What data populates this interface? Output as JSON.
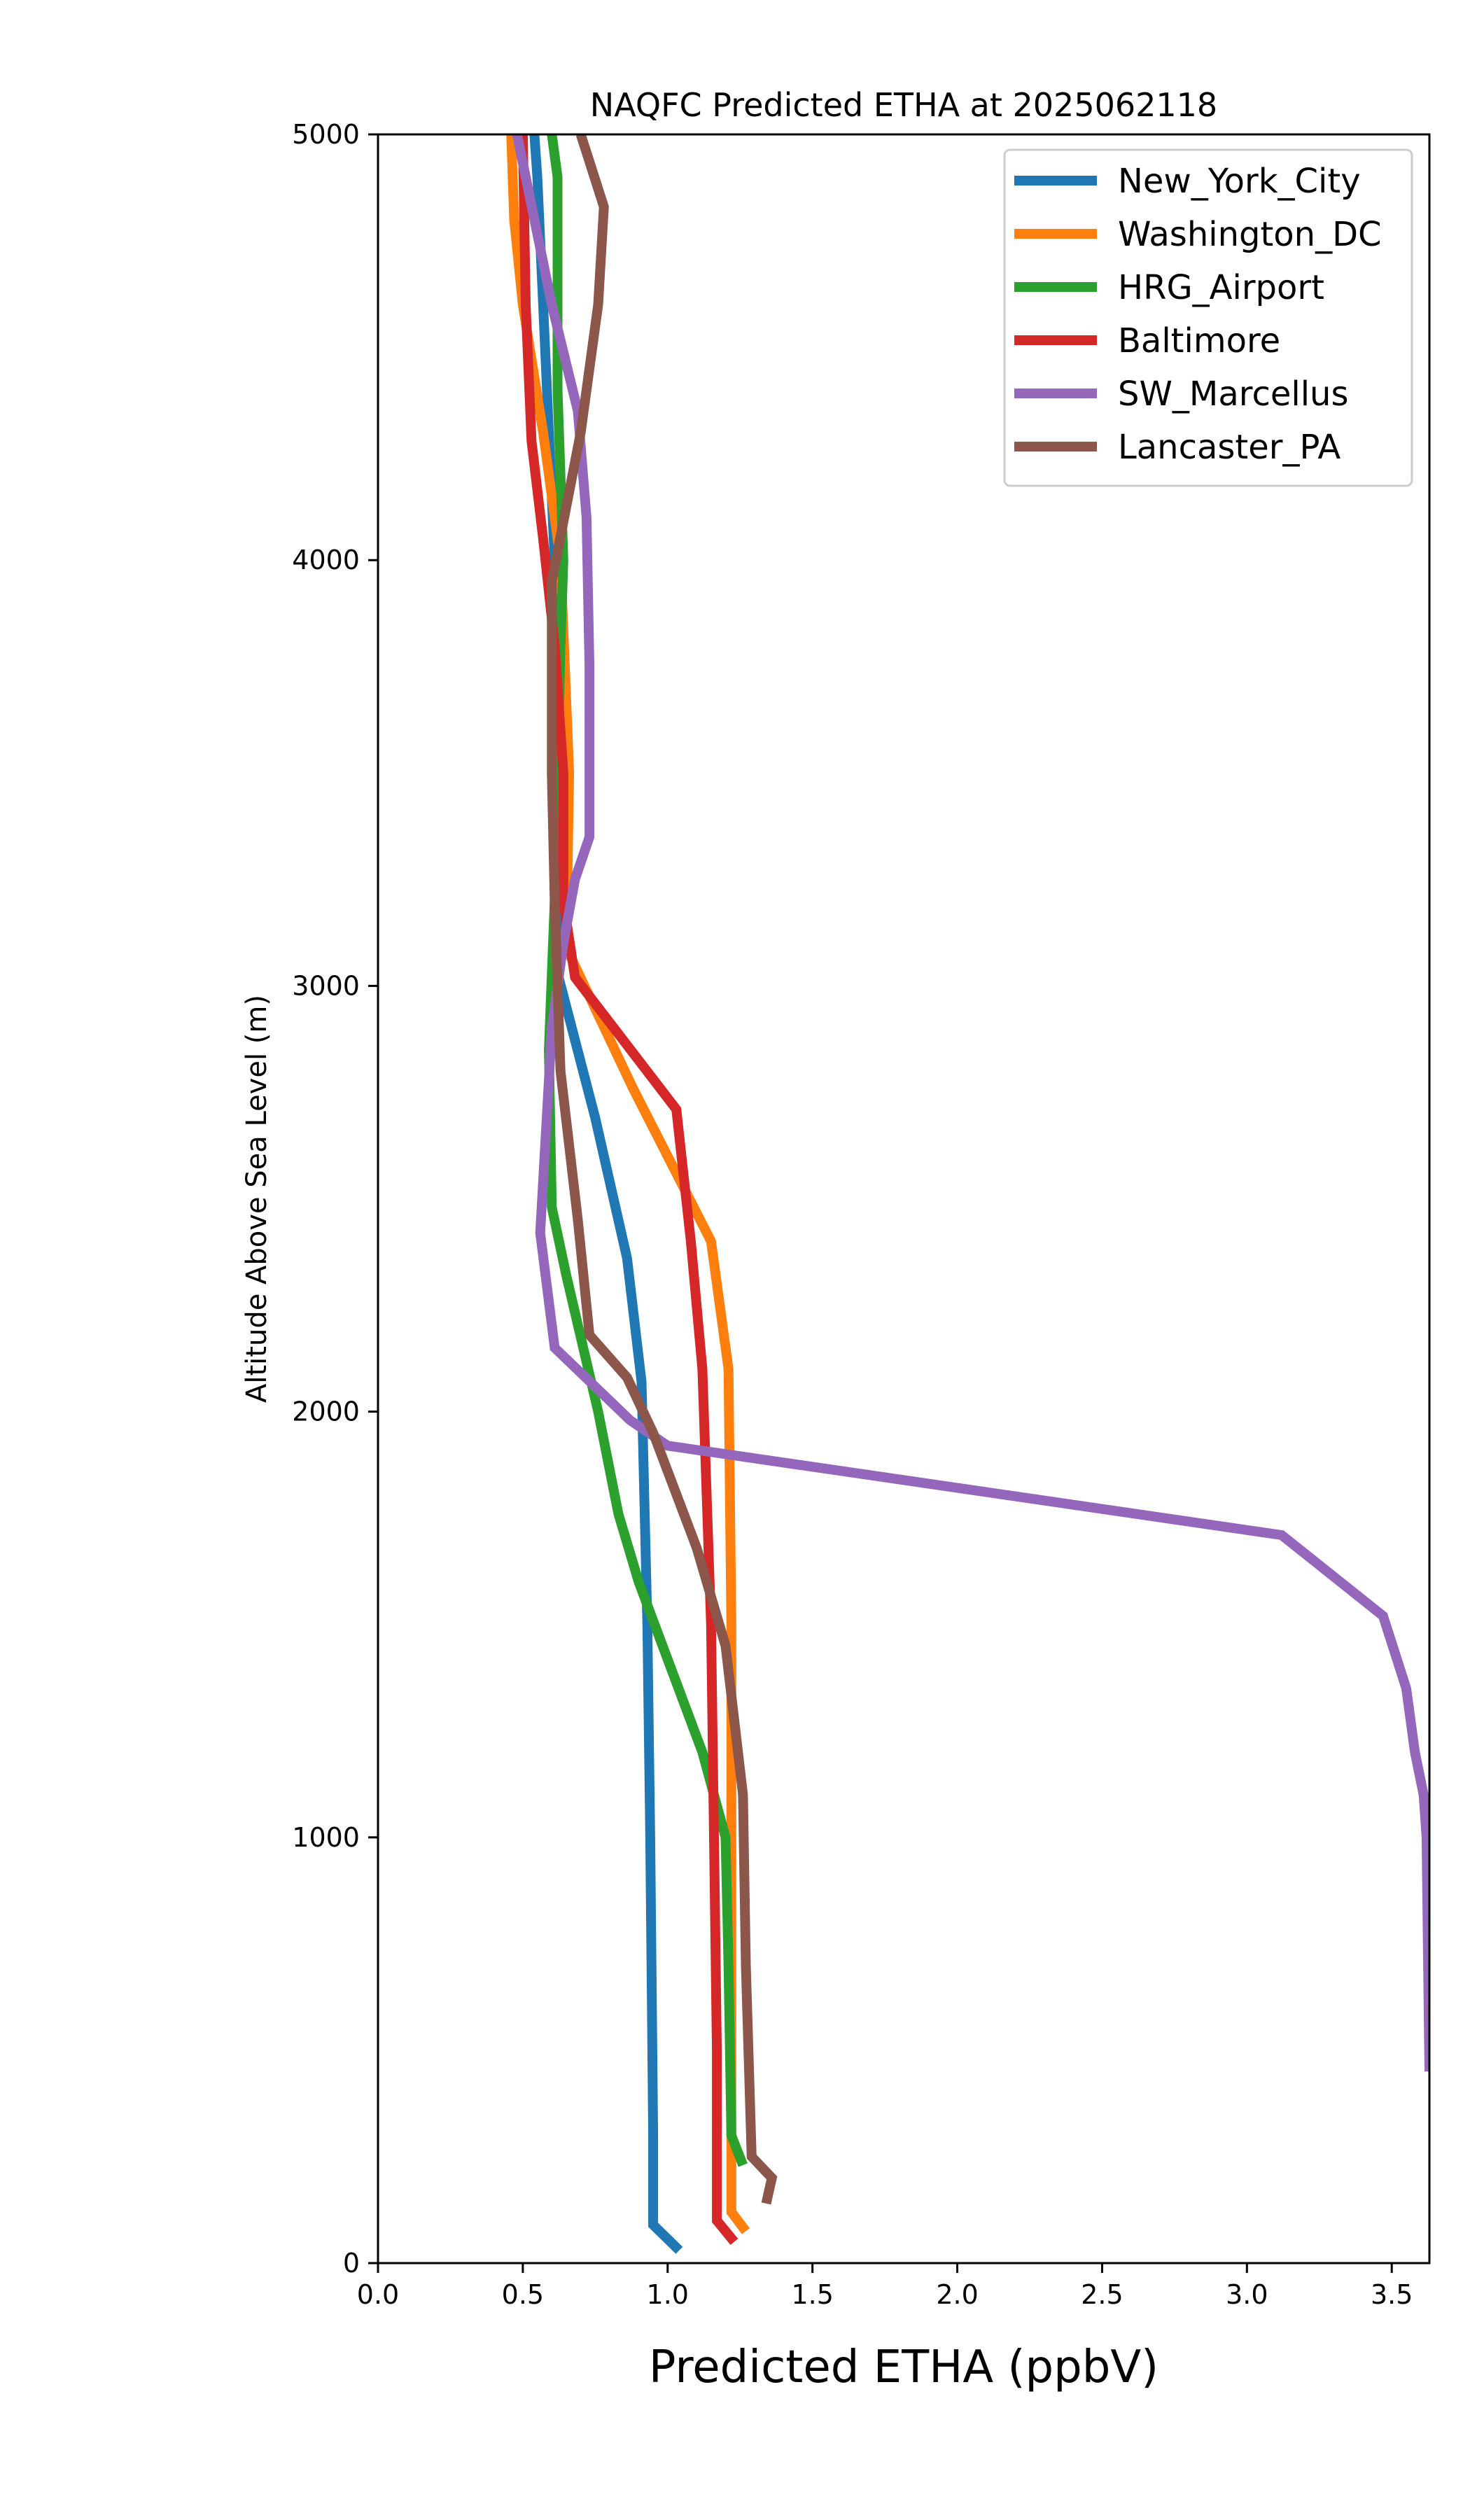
{
  "chart_data": {
    "type": "line",
    "title": "NAQFC Predicted ETHA at 2025062118",
    "xlabel": "Predicted ETHA (ppbV)",
    "ylabel": "Altitude Above Sea Level (m)",
    "xlim": [
      0,
      3.63
    ],
    "ylim": [
      0,
      5000
    ],
    "x_ticks": [
      "0.0",
      "0.5",
      "1.0",
      "1.5",
      "2.0",
      "2.5",
      "3.0",
      "3.5"
    ],
    "y_ticks": [
      "0",
      "1000",
      "2000",
      "3000",
      "4000",
      "5000"
    ],
    "grid": false,
    "legend_position": "top-right",
    "series": [
      {
        "name": "New_York_City",
        "color": "#1f77b4",
        "points": [
          [
            1.04,
            30
          ],
          [
            0.95,
            90
          ],
          [
            0.95,
            300
          ],
          [
            0.94,
            1000
          ],
          [
            0.93,
            1500
          ],
          [
            0.91,
            2070
          ],
          [
            0.86,
            2360
          ],
          [
            0.75,
            2690
          ],
          [
            0.62,
            3030
          ],
          [
            0.63,
            3500
          ],
          [
            0.62,
            3800
          ],
          [
            0.61,
            4000
          ],
          [
            0.59,
            4300
          ],
          [
            0.57,
            4600
          ],
          [
            0.55,
            4900
          ],
          [
            0.54,
            5000
          ]
        ]
      },
      {
        "name": "Washington_DC",
        "color": "#ff7f0e",
        "points": [
          [
            1.27,
            75
          ],
          [
            1.22,
            120
          ],
          [
            1.22,
            500
          ],
          [
            1.22,
            1000
          ],
          [
            1.22,
            1500
          ],
          [
            1.21,
            2100
          ],
          [
            1.15,
            2400
          ],
          [
            0.88,
            2760
          ],
          [
            0.65,
            3090
          ],
          [
            0.66,
            3500
          ],
          [
            0.63,
            4000
          ],
          [
            0.57,
            4300
          ],
          [
            0.5,
            4600
          ],
          [
            0.47,
            4800
          ],
          [
            0.46,
            5000
          ]
        ]
      },
      {
        "name": "HRG_Airport",
        "color": "#2ca02c",
        "points": [
          [
            1.26,
            230
          ],
          [
            1.22,
            300
          ],
          [
            1.21,
            700
          ],
          [
            1.2,
            1000
          ],
          [
            1.12,
            1200
          ],
          [
            0.9,
            1600
          ],
          [
            0.83,
            1760
          ],
          [
            0.76,
            2000
          ],
          [
            0.65,
            2320
          ],
          [
            0.6,
            2480
          ],
          [
            0.59,
            2850
          ],
          [
            0.61,
            3200
          ],
          [
            0.62,
            3500
          ],
          [
            0.63,
            3800
          ],
          [
            0.64,
            4000
          ],
          [
            0.62,
            4400
          ],
          [
            0.62,
            4900
          ],
          [
            0.6,
            5000
          ]
        ]
      },
      {
        "name": "Baltimore",
        "color": "#d62728",
        "points": [
          [
            1.23,
            50
          ],
          [
            1.17,
            100
          ],
          [
            1.17,
            500
          ],
          [
            1.16,
            1000
          ],
          [
            1.15,
            1500
          ],
          [
            1.12,
            2100
          ],
          [
            1.08,
            2400
          ],
          [
            1.03,
            2710
          ],
          [
            0.68,
            3020
          ],
          [
            0.64,
            3200
          ],
          [
            0.64,
            3500
          ],
          [
            0.61,
            3800
          ],
          [
            0.57,
            4050
          ],
          [
            0.53,
            4280
          ],
          [
            0.51,
            4600
          ],
          [
            0.5,
            5000
          ]
        ]
      },
      {
        "name": "SW_Marcellus",
        "color": "#9467bd",
        "points": [
          [
            3.63,
            450
          ],
          [
            3.62,
            1000
          ],
          [
            3.61,
            1100
          ],
          [
            3.58,
            1200
          ],
          [
            3.55,
            1350
          ],
          [
            3.47,
            1520
          ],
          [
            3.12,
            1710
          ],
          [
            1.0,
            1920
          ],
          [
            0.87,
            1980
          ],
          [
            0.61,
            2150
          ],
          [
            0.56,
            2420
          ],
          [
            0.6,
            2900
          ],
          [
            0.64,
            3100
          ],
          [
            0.68,
            3250
          ],
          [
            0.73,
            3350
          ],
          [
            0.73,
            3750
          ],
          [
            0.72,
            4100
          ],
          [
            0.69,
            4350
          ],
          [
            0.6,
            4600
          ],
          [
            0.54,
            4800
          ],
          [
            0.48,
            5000
          ]
        ]
      },
      {
        "name": "Lancaster_PA",
        "color": "#8c564b",
        "points": [
          [
            1.34,
            140
          ],
          [
            1.36,
            200
          ],
          [
            1.29,
            250
          ],
          [
            1.27,
            700
          ],
          [
            1.26,
            1100
          ],
          [
            1.2,
            1450
          ],
          [
            1.1,
            1680
          ],
          [
            0.95,
            1950
          ],
          [
            0.86,
            2080
          ],
          [
            0.73,
            2180
          ],
          [
            0.69,
            2450
          ],
          [
            0.63,
            2800
          ],
          [
            0.61,
            3200
          ],
          [
            0.6,
            3500
          ],
          [
            0.6,
            3800
          ],
          [
            0.6,
            3950
          ],
          [
            0.7,
            4300
          ],
          [
            0.76,
            4600
          ],
          [
            0.78,
            4830
          ],
          [
            0.7,
            5000
          ]
        ]
      }
    ]
  }
}
